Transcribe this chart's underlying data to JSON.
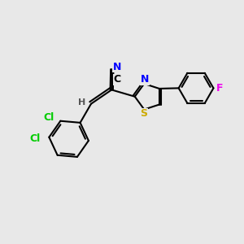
{
  "background_color": "#e8e8e8",
  "bond_color": "#000000",
  "atom_colors": {
    "N": "#0000ff",
    "S": "#ccaa00",
    "Cl": "#00cc00",
    "F": "#ee00ee",
    "C": "#000000",
    "H": "#555555"
  },
  "font_size": 9,
  "line_width": 1.5,
  "xlim": [
    0,
    10
  ],
  "ylim": [
    0,
    10
  ]
}
